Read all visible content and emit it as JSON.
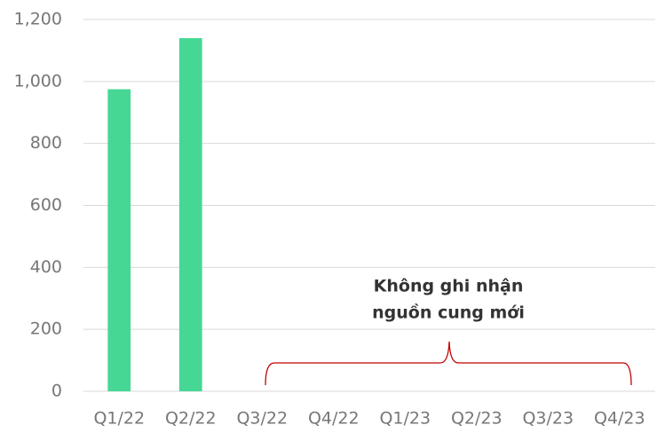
{
  "chart_data": {
    "type": "bar",
    "categories": [
      "Q1/22",
      "Q2/22",
      "Q3/22",
      "Q4/22",
      "Q1/23",
      "Q2/23",
      "Q3/23",
      "Q4/23"
    ],
    "values": [
      975,
      1140,
      0,
      0,
      0,
      0,
      0,
      0
    ],
    "color": "#47d795",
    "ylim": [
      0,
      1200
    ],
    "yticks": [
      0,
      200,
      400,
      600,
      800,
      {
        "value": 1000,
        "label": "1,000"
      },
      {
        "value": 1200,
        "label": "1,200"
      }
    ],
    "grid": true,
    "annotation": [
      "Không ghi nhận",
      "nguồn cung mới"
    ]
  }
}
